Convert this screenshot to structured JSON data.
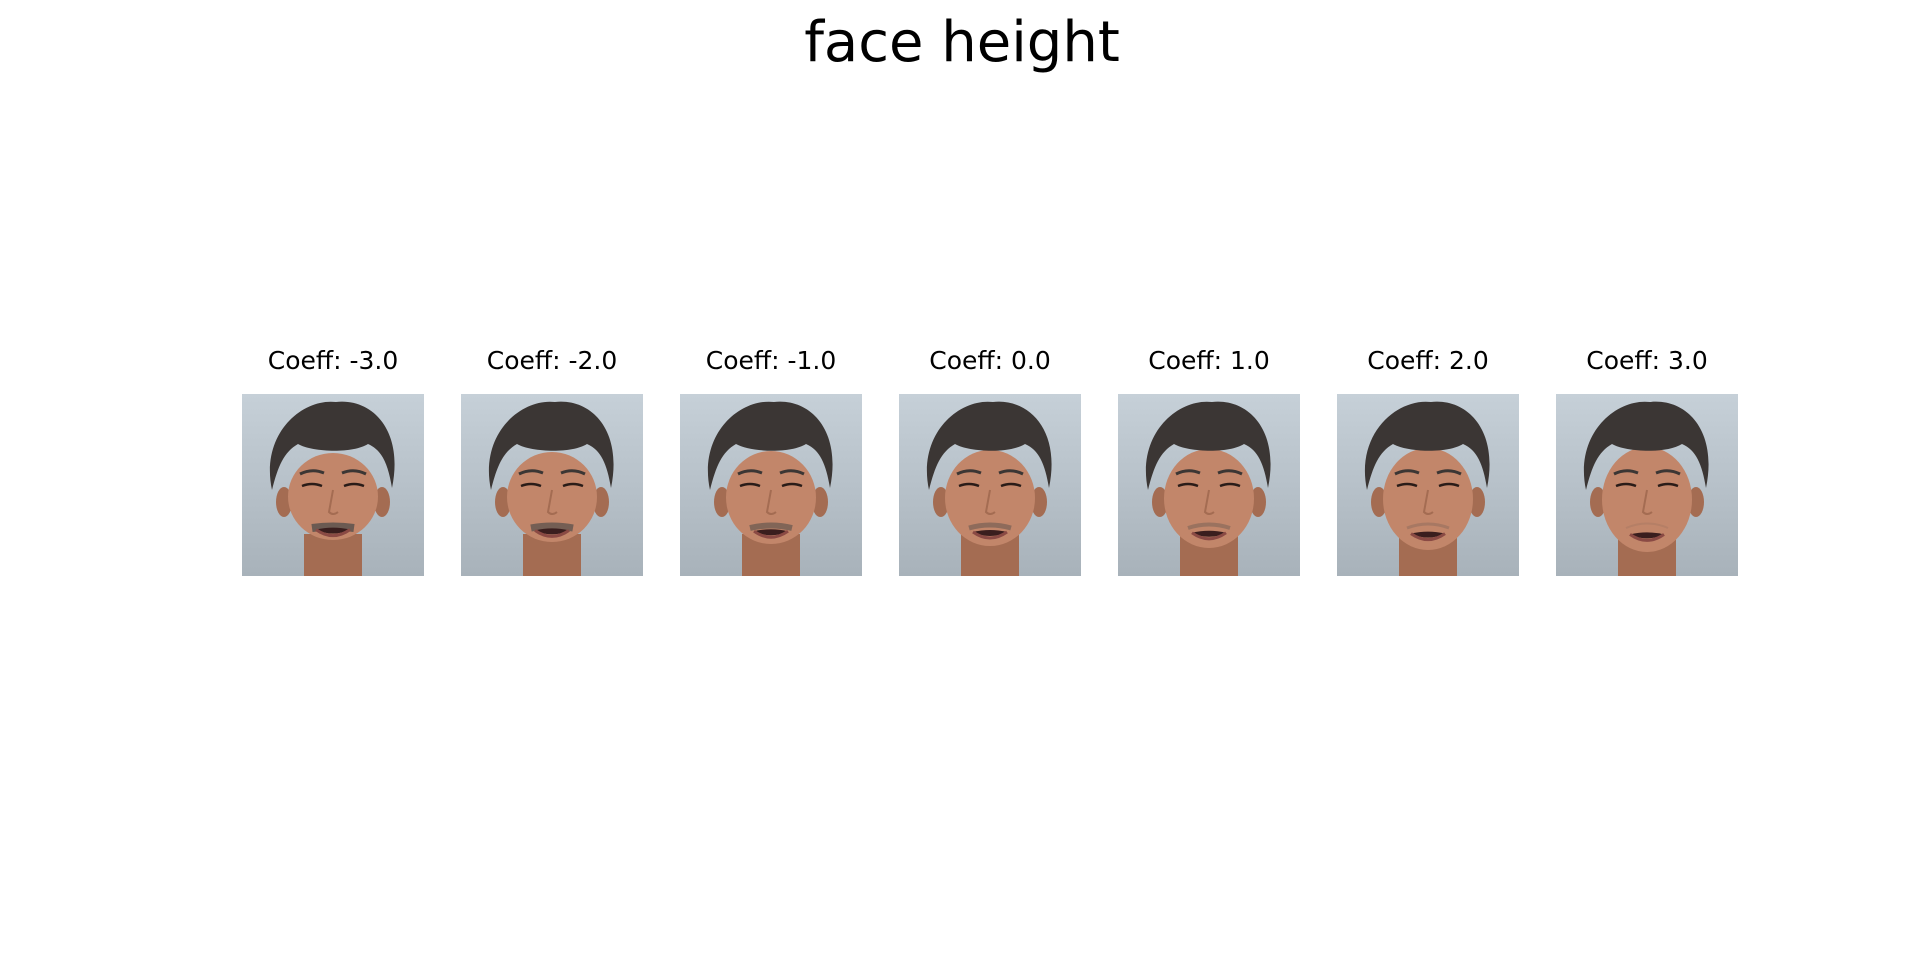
{
  "figure": {
    "title": "face height"
  },
  "panels": [
    {
      "label": "Coeff: -3.0",
      "coeff": -3.0
    },
    {
      "label": "Coeff: -2.0",
      "coeff": -2.0
    },
    {
      "label": "Coeff: -1.0",
      "coeff": -1.0
    },
    {
      "label": "Coeff: 0.0",
      "coeff": 0.0
    },
    {
      "label": "Coeff: 1.0",
      "coeff": 1.0
    },
    {
      "label": "Coeff: 2.0",
      "coeff": 2.0
    },
    {
      "label": "Coeff: 3.0",
      "coeff": 3.0
    }
  ],
  "colors": {
    "background_top": "#c6d0d8",
    "background_bottom": "#a8b2ba",
    "skin": "#c2866a",
    "skin_shadow": "#a46c52",
    "hair": "#3b3634",
    "lips": "#8a4a44",
    "mouth": "#3a1e1e",
    "beard": "#6b5a52"
  }
}
